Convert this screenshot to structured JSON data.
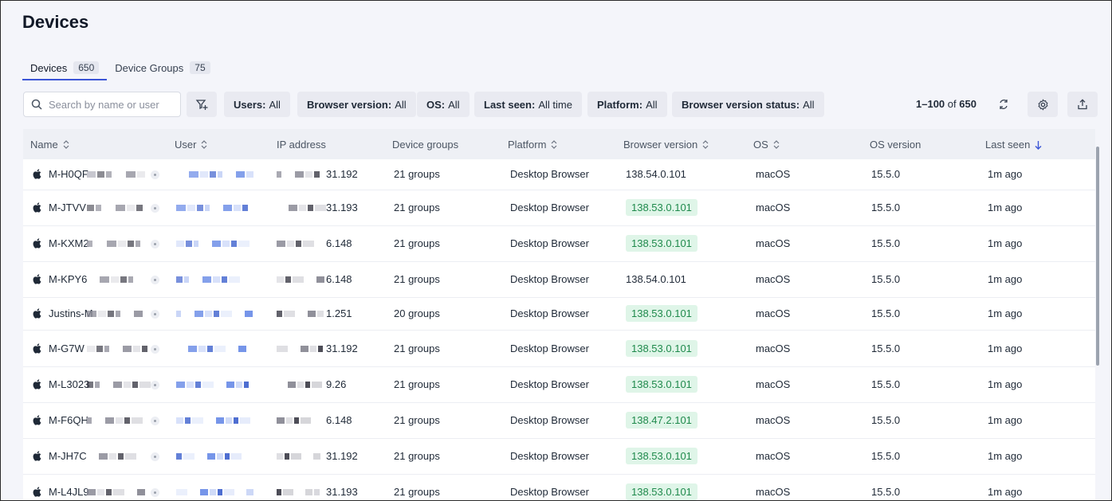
{
  "page": {
    "title": "Devices"
  },
  "tabs": [
    {
      "label": "Devices",
      "count": "650"
    },
    {
      "label": "Device Groups",
      "count": "75"
    }
  ],
  "search": {
    "placeholder": "Search by name or user"
  },
  "filters": [
    {
      "key": "Users:",
      "value": "All"
    },
    {
      "key": "Browser version:",
      "value": "All"
    },
    {
      "key": "OS:",
      "value": "All"
    },
    {
      "key": "Last seen:",
      "value": "All time"
    },
    {
      "key": "Platform:",
      "value": "All"
    },
    {
      "key": "Browser version status:",
      "value": "All"
    }
  ],
  "pagination": {
    "range": "1–100",
    "of": "of",
    "total": "650"
  },
  "columns": [
    "Name",
    "User",
    "IP address",
    "Device groups",
    "Platform",
    "Browser version",
    "OS",
    "OS version",
    "Last seen"
  ],
  "rows": [
    {
      "name": "M-H0QF",
      "ip": "31.192",
      "groups": "21 groups",
      "platform": "Desktop Browser",
      "browser": "138.54.0.101",
      "outdated": false,
      "os": "macOS",
      "os_version": "15.5.0",
      "last_seen": "1m ago"
    },
    {
      "name": "M-JTVV",
      "ip": "31.193",
      "groups": "21 groups",
      "platform": "Desktop Browser",
      "browser": "138.53.0.101",
      "outdated": true,
      "os": "macOS",
      "os_version": "15.5.0",
      "last_seen": "1m ago"
    },
    {
      "name": "M-KXM2",
      "ip": "6.148",
      "groups": "21 groups",
      "platform": "Desktop Browser",
      "browser": "138.53.0.101",
      "outdated": true,
      "os": "macOS",
      "os_version": "15.5.0",
      "last_seen": "1m ago"
    },
    {
      "name": "M-KPY6",
      "ip": "6.148",
      "groups": "21 groups",
      "platform": "Desktop Browser",
      "browser": "138.54.0.101",
      "outdated": false,
      "os": "macOS",
      "os_version": "15.5.0",
      "last_seen": "1m ago"
    },
    {
      "name": "Justins-M",
      "ip": "1.251",
      "groups": "20 groups",
      "platform": "Desktop Browser",
      "browser": "138.53.0.101",
      "outdated": true,
      "os": "macOS",
      "os_version": "15.5.0",
      "last_seen": "1m ago"
    },
    {
      "name": "M-G7W",
      "ip": "31.192",
      "groups": "21 groups",
      "platform": "Desktop Browser",
      "browser": "138.53.0.101",
      "outdated": true,
      "os": "macOS",
      "os_version": "15.5.0",
      "last_seen": "1m ago"
    },
    {
      "name": "M-L3023",
      "ip": "9.26",
      "groups": "21 groups",
      "platform": "Desktop Browser",
      "browser": "138.53.0.101",
      "outdated": true,
      "os": "macOS",
      "os_version": "15.5.0",
      "last_seen": "1m ago"
    },
    {
      "name": "M-F6QH",
      "ip": "6.148",
      "groups": "21 groups",
      "platform": "Desktop Browser",
      "browser": "138.47.2.101",
      "outdated": true,
      "os": "macOS",
      "os_version": "15.5.0",
      "last_seen": "1m ago"
    },
    {
      "name": "M-JH7C",
      "ip": "31.192",
      "groups": "21 groups",
      "platform": "Desktop Browser",
      "browser": "138.53.0.101",
      "outdated": true,
      "os": "macOS",
      "os_version": "15.5.0",
      "last_seen": "1m ago"
    },
    {
      "name": "M-L4JL9",
      "ip": "31.193",
      "groups": "21 groups",
      "platform": "Desktop Browser",
      "browser": "138.53.0.101",
      "outdated": true,
      "os": "macOS",
      "os_version": "15.5.0",
      "last_seen": "1m ago"
    }
  ],
  "colors": {
    "accent": "#3b55d6",
    "badge_bg": "#dff5e8",
    "badge_text": "#1f8a4c"
  },
  "icons": [
    "search-icon",
    "filter-add-icon",
    "refresh-icon",
    "settings-icon",
    "export-icon",
    "apple-icon",
    "sort-icon",
    "sort-desc-icon"
  ]
}
